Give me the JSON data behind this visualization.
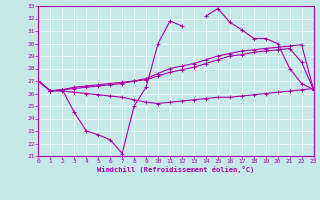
{
  "xlabel": "Windchill (Refroidissement éolien,°C)",
  "background_color": "#c5e8e8",
  "line_color": "#aa00aa",
  "grid_color": "#ffffff",
  "hours": [
    0,
    1,
    2,
    3,
    4,
    5,
    6,
    7,
    8,
    9,
    10,
    11,
    12,
    13,
    14,
    15,
    16,
    17,
    18,
    19,
    20,
    21,
    22,
    23
  ],
  "line1": [
    27,
    26.2,
    26.3,
    24.5,
    23.0,
    22.7,
    22.3,
    21.2,
    25.0,
    26.5,
    30.0,
    31.8,
    31.4,
    null,
    32.2,
    32.8,
    31.7,
    31.1,
    30.4,
    30.4,
    30.0,
    28.0,
    26.8,
    26.3
  ],
  "line2": [
    27.0,
    26.2,
    26.3,
    26.5,
    26.6,
    26.7,
    26.8,
    26.9,
    27.0,
    27.2,
    27.6,
    28.0,
    28.2,
    28.4,
    28.7,
    29.0,
    29.2,
    29.4,
    29.5,
    29.6,
    29.7,
    29.8,
    29.9,
    26.3
  ],
  "line3": [
    27.0,
    26.2,
    26.3,
    26.4,
    26.5,
    26.6,
    26.7,
    26.8,
    27.0,
    27.1,
    27.4,
    27.7,
    27.9,
    28.1,
    28.4,
    28.7,
    29.0,
    29.1,
    29.3,
    29.4,
    29.5,
    29.6,
    28.5,
    26.3
  ],
  "line4": [
    27.0,
    26.2,
    26.2,
    26.1,
    26.0,
    25.9,
    25.8,
    25.7,
    25.5,
    25.3,
    25.2,
    25.3,
    25.4,
    25.5,
    25.6,
    25.7,
    25.7,
    25.8,
    25.9,
    26.0,
    26.1,
    26.2,
    26.3,
    26.4
  ],
  "ylim": [
    21,
    33
  ],
  "xlim": [
    0,
    23
  ]
}
